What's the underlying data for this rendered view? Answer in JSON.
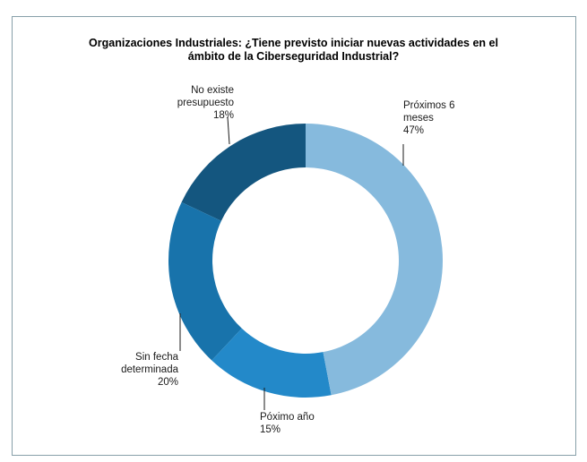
{
  "chart_data": {
    "type": "pie",
    "subtype": "donut",
    "title": "Organizaciones Industriales: ¿Tiene previsto iniciar nuevas actividades en el\námbito de la Ciberseguridad Industrial?",
    "unit": "%",
    "total": 100,
    "start_angle": "top",
    "direction": "clockwise",
    "inner_radius_ratio": 0.68,
    "legend_position": "none",
    "labels_style": "external-callouts-with-leader-lines",
    "frame_border_color": "#87a0a9",
    "leader_line_color": "#1a1a1a",
    "segments": [
      {
        "id": "proximos-6-meses",
        "label": "Próximos 6 meses",
        "value": 47,
        "color": "#86badd",
        "callout": "Próximos 6\nmeses\n47%"
      },
      {
        "id": "poximo-ano",
        "label": "Póximo año",
        "value": 15,
        "color": "#2389c9",
        "callout": "Póximo año\n15%"
      },
      {
        "id": "sin-fecha-determinada",
        "label": "Sin fecha determinada",
        "value": 20,
        "color": "#1873ab",
        "callout": "Sin fecha\ndeterminada\n20%"
      },
      {
        "id": "no-existe-presupuesto",
        "label": "No existe presupuesto",
        "value": 18,
        "color": "#14567f",
        "callout": "No existe\npresupuesto\n18%"
      }
    ]
  }
}
